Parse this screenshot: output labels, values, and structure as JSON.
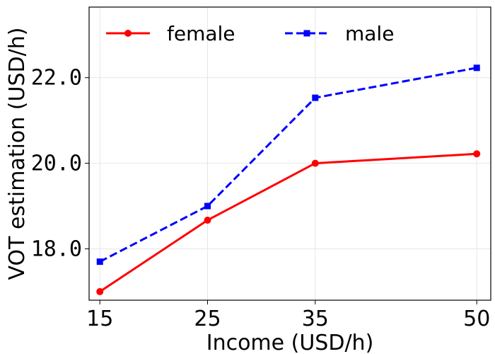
{
  "chart_data": {
    "type": "line",
    "x": [
      15,
      25,
      35,
      50
    ],
    "xticks": [
      "15",
      "25",
      "35",
      "50"
    ],
    "yticks": [
      "18.0",
      "20.0",
      "22.0"
    ],
    "ytick_values": [
      18,
      20,
      22
    ],
    "xlabel": "Income (USD/h)",
    "ylabel": "VOT estimation (USD/h)",
    "xlim": [
      14,
      51.3
    ],
    "ylim": [
      16.8,
      23.65
    ],
    "grid": true,
    "legend_position": "top",
    "series": [
      {
        "name": "female",
        "values": [
          17.0,
          18.67,
          20.0,
          20.22
        ],
        "color": "#ff0000",
        "marker": "circle",
        "linestyle": "solid"
      },
      {
        "name": "male",
        "values": [
          17.7,
          19.0,
          21.53,
          22.23
        ],
        "color": "#0000ff",
        "marker": "square",
        "linestyle": "dashed"
      }
    ]
  }
}
